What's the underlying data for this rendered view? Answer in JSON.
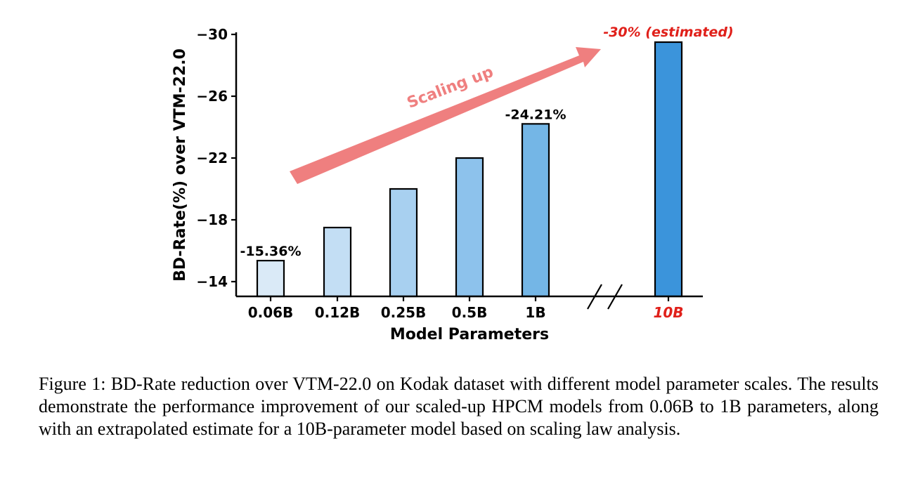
{
  "chart_data": {
    "type": "bar",
    "categories": [
      "0.06B",
      "0.12B",
      "0.25B",
      "0.5B",
      "1B",
      "10B"
    ],
    "values": [
      -15.36,
      -17.5,
      -20.0,
      -22.0,
      -24.21,
      -29.5
    ],
    "colors": [
      "#daeaf7",
      "#c3def4",
      "#a8d0f0",
      "#8dc2ec",
      "#74b6e6",
      "#3b94db"
    ],
    "data_labels": [
      "-15.36%",
      "",
      "",
      "",
      "-24.21%",
      "-30% (estimated)"
    ],
    "xlabel": "Model Parameters",
    "ylabel": "BD-Rate(%) over VTM-22.0",
    "yticks": [
      -14,
      -18,
      -22,
      -26,
      -30
    ],
    "ylim": [
      -13,
      -30.5
    ],
    "y_inverted": true,
    "axis_break_between": [
      "1B",
      "10B"
    ],
    "highlight_category": "10B",
    "highlight_color": "#e0201a",
    "arrow_label": "Scaling up",
    "arrow_color": "#ef7f7f"
  },
  "caption": {
    "text": "Figure 1: BD-Rate reduction over VTM-22.0 on Kodak dataset with different model parameter scales. The results demonstrate the performance improvement of our scaled-up HPCM models from 0.06B to 1B parameters, along with an extrapolated estimate for a 10B-parameter model based on scaling law analysis."
  }
}
